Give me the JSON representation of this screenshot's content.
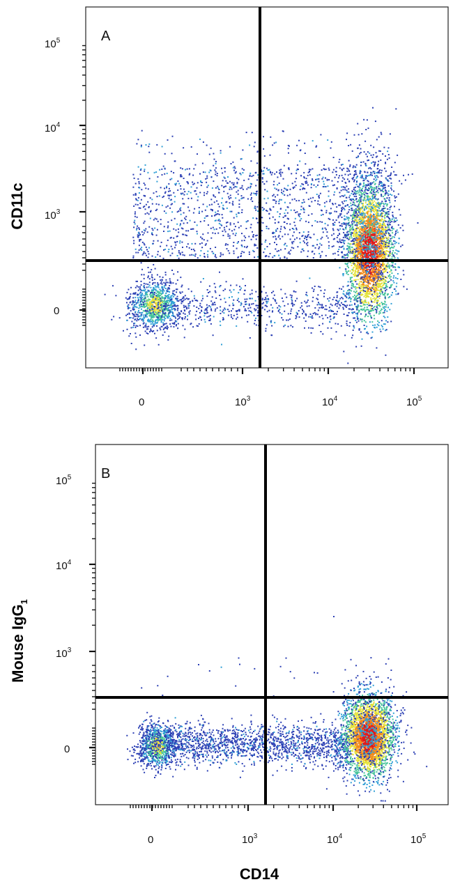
{
  "chart_data": [
    {
      "type": "scatter",
      "panel_label": "A",
      "ylabel": "CD11c",
      "xlabel": "",
      "x_ticks": [
        {
          "base": "0",
          "exp": ""
        },
        {
          "base": "10",
          "exp": "3"
        },
        {
          "base": "10",
          "exp": "4"
        },
        {
          "base": "10",
          "exp": "5"
        }
      ],
      "y_ticks": [
        {
          "base": "0",
          "exp": ""
        },
        {
          "base": "10",
          "exp": "3"
        },
        {
          "base": "10",
          "exp": "4"
        },
        {
          "base": "10",
          "exp": "5"
        }
      ],
      "x_scale": "biexponential",
      "y_scale": "biexponential",
      "quadrant_gate": {
        "x": 1500,
        "y": 300
      },
      "populations": [
        {
          "name": "double-negative",
          "x_center": 0,
          "y_center": 0,
          "density": "moderate"
        },
        {
          "name": "CD14+ CD11c high",
          "x_center": 28000,
          "y_center": 400,
          "density": "high"
        },
        {
          "name": "CD11c+ scattered",
          "x_center": 2000,
          "y_center": 800,
          "density": "low"
        }
      ],
      "color_scale": [
        "#2b3fb4",
        "#2f9fd6",
        "#46c49a",
        "#e4e23a",
        "#f28c1c",
        "#e01b1b"
      ]
    },
    {
      "type": "scatter",
      "panel_label": "B",
      "ylabel": "Mouse IgG",
      "ylabel_subscript": "1",
      "xlabel": "CD14",
      "x_ticks": [
        {
          "base": "0",
          "exp": ""
        },
        {
          "base": "10",
          "exp": "3"
        },
        {
          "base": "10",
          "exp": "4"
        },
        {
          "base": "10",
          "exp": "5"
        }
      ],
      "y_ticks": [
        {
          "base": "0",
          "exp": ""
        },
        {
          "base": "10",
          "exp": "3"
        },
        {
          "base": "10",
          "exp": "4"
        },
        {
          "base": "10",
          "exp": "5"
        }
      ],
      "x_scale": "biexponential",
      "y_scale": "biexponential",
      "quadrant_gate": {
        "x": 1500,
        "y": 300
      },
      "populations": [
        {
          "name": "double-negative",
          "x_center": 0,
          "y_center": 0,
          "density": "moderate"
        },
        {
          "name": "CD14+ isotype",
          "x_center": 24000,
          "y_center": 0,
          "density": "high"
        }
      ],
      "color_scale": [
        "#2b3fb4",
        "#2f9fd6",
        "#46c49a",
        "#e4e23a",
        "#f28c1c",
        "#e01b1b"
      ]
    }
  ]
}
